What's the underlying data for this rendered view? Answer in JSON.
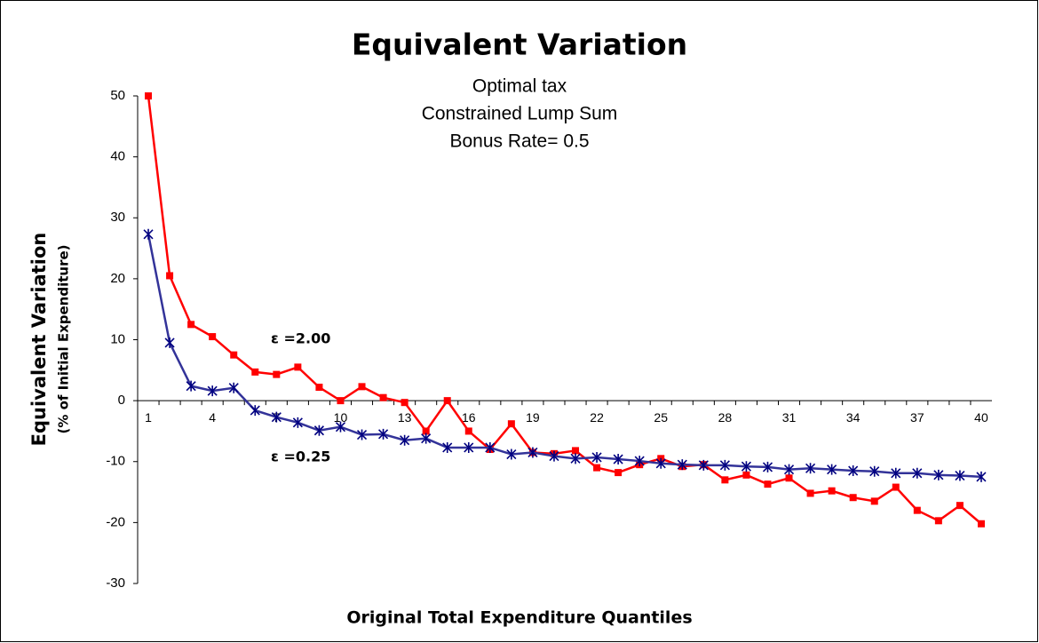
{
  "chart_data": {
    "type": "line",
    "title": "Equivalent Variation",
    "subtitle": [
      "Optimal tax",
      "Constrained Lump Sum",
      "Bonus Rate= 0.5"
    ],
    "x_label": "Original Total Expenditure Quantiles",
    "y_label": [
      "Equivalent Variation",
      "(% of Initial Expenditure)"
    ],
    "categories": [
      1,
      null,
      null,
      4,
      null,
      null,
      7,
      null,
      null,
      10,
      null,
      null,
      13,
      null,
      null,
      16,
      null,
      null,
      19,
      null,
      null,
      22,
      null,
      null,
      25,
      null,
      null,
      28,
      null,
      null,
      31,
      null,
      null,
      34,
      null,
      null,
      37,
      null,
      null,
      40
    ],
    "series": [
      {
        "name": "ε =2.00",
        "color": "#ff0000",
        "marker": "square",
        "values": [
          50,
          20.5,
          12.5,
          10.5,
          7.5,
          4.7,
          4.3,
          5.5,
          2.2,
          0,
          2.3,
          0.5,
          -0.3,
          -5,
          0,
          -5,
          -8,
          -3.8,
          -8.5,
          -8.7,
          -8.2,
          -11,
          -11.8,
          -10.5,
          -9.5,
          -10.8,
          -10.5,
          -13,
          -12.2,
          -13.7,
          -12.7,
          -15.2,
          -14.8,
          -15.9,
          -16.5,
          -14.2,
          -18,
          -19.7,
          -17.2,
          -20.2
        ]
      },
      {
        "name": "ε =0.25",
        "color": "#333399",
        "marker": "star",
        "values": [
          27.3,
          9.5,
          2.4,
          1.6,
          2.1,
          -1.6,
          -2.7,
          -3.6,
          -4.9,
          -4.3,
          -5.6,
          -5.5,
          -6.5,
          -6.2,
          -7.7,
          -7.7,
          -7.7,
          -8.8,
          -8.5,
          -9.1,
          -9.5,
          -9.3,
          -9.6,
          -9.9,
          -10.3,
          -10.5,
          -10.6,
          -10.6,
          -10.8,
          -10.9,
          -11.3,
          -11.1,
          -11.3,
          -11.5,
          -11.6,
          -11.9,
          -11.9,
          -12.2,
          -12.3,
          -12.5
        ]
      }
    ],
    "ylim": [
      -30,
      50
    ],
    "yticks": [
      -30,
      -20,
      -10,
      0,
      10,
      20,
      30,
      40,
      50
    ],
    "grid": false
  }
}
